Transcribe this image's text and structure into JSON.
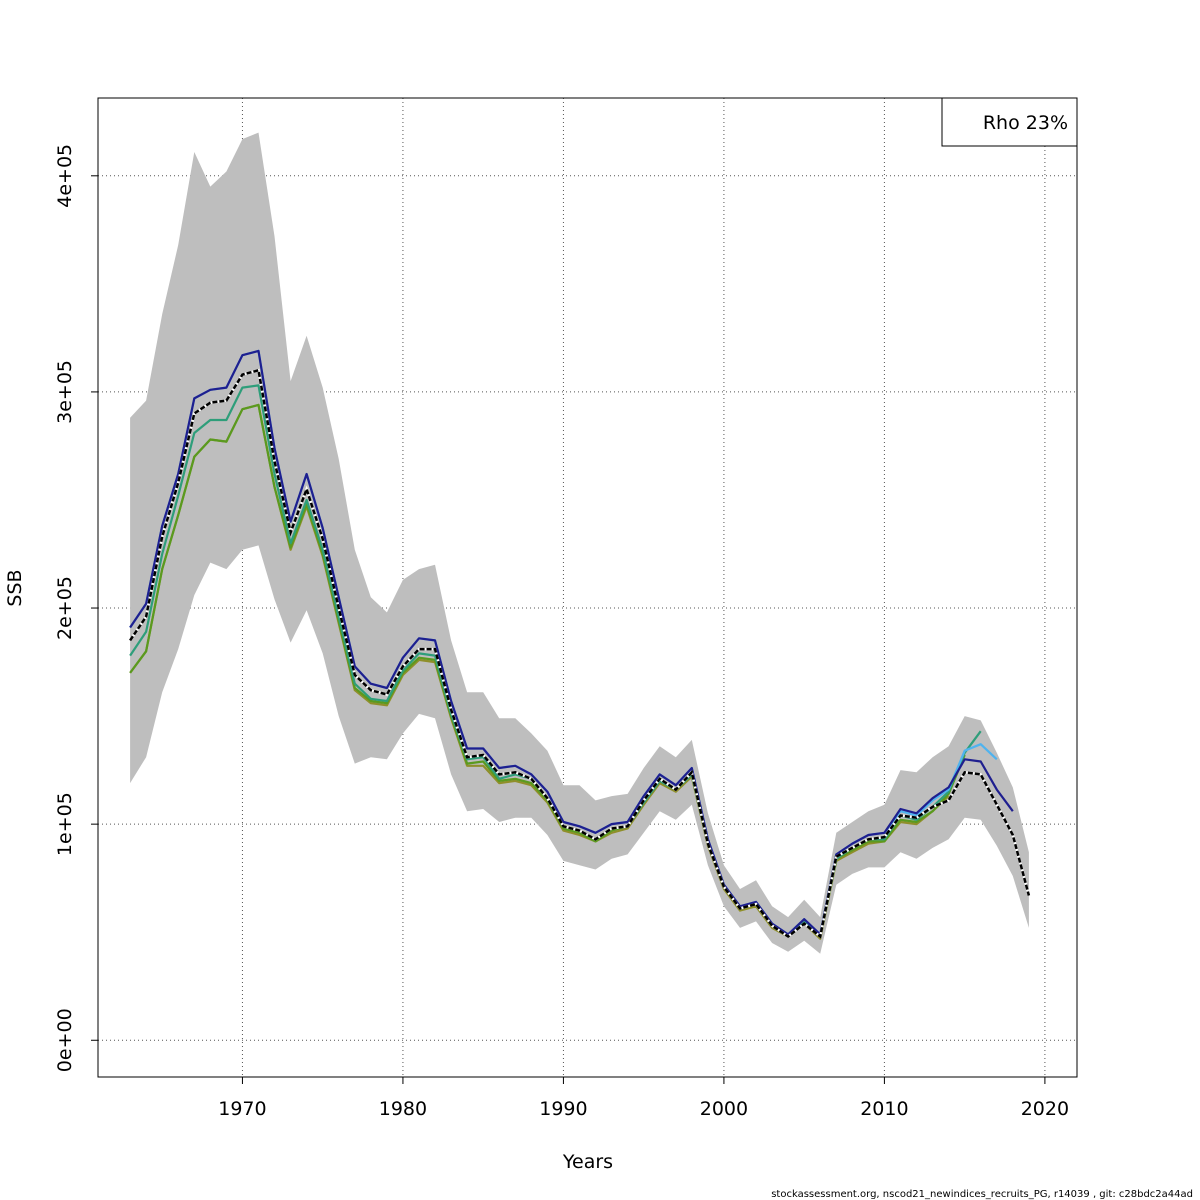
{
  "chart_data": {
    "type": "line",
    "xlabel": "Years",
    "ylabel": "SSB",
    "xlim": [
      1961,
      2022
    ],
    "ylim": [
      -17000,
      436000
    ],
    "x_ticks": [
      1970,
      1980,
      1990,
      2000,
      2010,
      2020
    ],
    "y_ticks": [
      0,
      100000,
      200000,
      300000,
      400000
    ],
    "y_tick_labels": [
      "0e+00",
      "1e+05",
      "2e+05",
      "3e+05",
      "4e+05"
    ],
    "grid": true,
    "legend": {
      "position": "top-right",
      "text": "Rho 23%"
    },
    "colors": {
      "band": "#bebebe",
      "peel1": "#1f1f8f",
      "peel2": "#4fb3ef",
      "peel3": "#2e9e7a",
      "peel4": "#5a9a1f",
      "peel5": "#8f8f2a",
      "terminal": "#000000"
    },
    "band": {
      "years": [
        1963,
        1964,
        1965,
        1966,
        1967,
        1968,
        1969,
        1970,
        1971,
        1972,
        1973,
        1974,
        1975,
        1976,
        1977,
        1978,
        1979,
        1980,
        1981,
        1982,
        1983,
        1984,
        1985,
        1986,
        1987,
        1988,
        1989,
        1990,
        1991,
        1992,
        1993,
        1994,
        1995,
        1996,
        1997,
        1998,
        1999,
        2000,
        2001,
        2002,
        2003,
        2004,
        2005,
        2006,
        2007,
        2008,
        2009,
        2010,
        2011,
        2012,
        2013,
        2014,
        2015,
        2016,
        2017,
        2018,
        2019
      ],
      "upper": [
        288000,
        296000,
        336000,
        368000,
        411000,
        395000,
        402000,
        417000,
        420000,
        372000,
        305000,
        326000,
        302000,
        269000,
        227000,
        205000,
        198000,
        213000,
        218000,
        220000,
        185000,
        161000,
        161000,
        149000,
        149000,
        142000,
        134000,
        118000,
        118000,
        111000,
        113000,
        114000,
        126000,
        136000,
        131000,
        139000,
        105000,
        81000,
        70000,
        74000,
        62000,
        57000,
        65000,
        57000,
        96000,
        101000,
        106000,
        109000,
        125000,
        124000,
        131000,
        136000,
        150000,
        148000,
        133000,
        117000,
        87000
      ],
      "lower": [
        119000,
        131000,
        161000,
        181000,
        206000,
        221000,
        218000,
        227000,
        229000,
        204000,
        184000,
        199000,
        179000,
        150000,
        128000,
        131000,
        130000,
        142000,
        151000,
        149000,
        123000,
        106000,
        107000,
        101000,
        103000,
        103000,
        95000,
        83000,
        81000,
        79000,
        84000,
        86000,
        96000,
        106000,
        102000,
        109000,
        81000,
        62000,
        52000,
        55000,
        45000,
        41000,
        46000,
        40000,
        72000,
        77000,
        80000,
        80000,
        87000,
        84000,
        89000,
        93000,
        103000,
        102000,
        90000,
        76000,
        52000
      ]
    },
    "series": [
      {
        "color_key": "peel1",
        "years": [
          1963,
          1964,
          1965,
          1966,
          1967,
          1968,
          1969,
          1970,
          1971,
          1972,
          1973,
          1974,
          1975,
          1976,
          1977,
          1978,
          1979,
          1980,
          1981,
          1982,
          1983,
          1984,
          1985,
          1986,
          1987,
          1988,
          1989,
          1990,
          1991,
          1992,
          1993,
          1994,
          1995,
          1996,
          1997,
          1998,
          1999,
          2000,
          2001,
          2002,
          2003,
          2004,
          2005,
          2006,
          2007,
          2008,
          2009,
          2010,
          2011,
          2012,
          2013,
          2014,
          2015,
          2016,
          2017,
          2018
        ],
        "values": [
          191000,
          202000,
          238000,
          262000,
          297000,
          301000,
          302000,
          317000,
          319000,
          274000,
          240000,
          262000,
          237000,
          205000,
          173000,
          165000,
          163000,
          177000,
          186000,
          185000,
          157000,
          135000,
          135000,
          126000,
          127000,
          123000,
          115000,
          101000,
          99000,
          96000,
          100000,
          101000,
          113000,
          123000,
          118000,
          126000,
          93000,
          72000,
          62000,
          64000,
          54000,
          49000,
          56000,
          49000,
          86000,
          91000,
          95000,
          96000,
          107000,
          105000,
          112000,
          117000,
          130000,
          129000,
          116000,
          106000
        ]
      },
      {
        "color_key": "peel2",
        "years": [
          1963,
          1964,
          1965,
          1966,
          1967,
          1968,
          1969,
          1970,
          1971,
          1972,
          1973,
          1974,
          1975,
          1976,
          1977,
          1978,
          1979,
          1980,
          1981,
          1982,
          1983,
          1984,
          1985,
          1986,
          1987,
          1988,
          1989,
          1990,
          1991,
          1992,
          1993,
          1994,
          1995,
          1996,
          1997,
          1998,
          1999,
          2000,
          2001,
          2002,
          2003,
          2004,
          2005,
          2006,
          2007,
          2008,
          2009,
          2010,
          2011,
          2012,
          2013,
          2014,
          2015,
          2016,
          2017
        ],
        "values": [
          191000,
          202000,
          238000,
          262000,
          297000,
          301000,
          302000,
          317000,
          319000,
          274000,
          240000,
          262000,
          237000,
          205000,
          173000,
          165000,
          163000,
          177000,
          186000,
          185000,
          157000,
          135000,
          135000,
          126000,
          127000,
          123000,
          115000,
          101000,
          99000,
          96000,
          100000,
          101000,
          113000,
          123000,
          118000,
          126000,
          93000,
          72000,
          62000,
          64000,
          54000,
          49000,
          56000,
          49000,
          86000,
          91000,
          95000,
          96000,
          106000,
          104000,
          111000,
          116000,
          134000,
          137000,
          130000
        ]
      },
      {
        "color_key": "peel3",
        "years": [
          1963,
          1964,
          1965,
          1966,
          1967,
          1968,
          1969,
          1970,
          1971,
          1972,
          1973,
          1974,
          1975,
          1976,
          1977,
          1978,
          1979,
          1980,
          1981,
          1982,
          1983,
          1984,
          1985,
          1986,
          1987,
          1988,
          1989,
          1990,
          1991,
          1992,
          1993,
          1994,
          1995,
          1996,
          1997,
          1998,
          1999,
          2000,
          2001,
          2002,
          2003,
          2004,
          2005,
          2006,
          2007,
          2008,
          2009,
          2010,
          2011,
          2012,
          2013,
          2014,
          2015,
          2016
        ],
        "values": [
          178000,
          189000,
          225000,
          252000,
          281000,
          287000,
          287000,
          302000,
          303000,
          262000,
          230000,
          250000,
          227000,
          196000,
          165000,
          158000,
          157000,
          171000,
          179000,
          178000,
          151000,
          130000,
          131000,
          121000,
          123000,
          121000,
          112000,
          99000,
          97000,
          93000,
          98000,
          99000,
          110000,
          120000,
          116000,
          123000,
          91000,
          71000,
          61000,
          63000,
          53000,
          49000,
          55000,
          48000,
          84000,
          89000,
          93000,
          93000,
          104000,
          102000,
          108000,
          115000,
          133000,
          143000
        ]
      },
      {
        "color_key": "peel4",
        "years": [
          1963,
          1964,
          1965,
          1966,
          1967,
          1968,
          1969,
          1970,
          1971,
          1972,
          1973,
          1974,
          1975,
          1976,
          1977,
          1978,
          1979,
          1980,
          1981,
          1982,
          1983,
          1984,
          1985,
          1986,
          1987,
          1988,
          1989,
          1990,
          1991,
          1992,
          1993,
          1994,
          1995,
          1996,
          1997,
          1998,
          1999,
          2000,
          2001,
          2002,
          2003,
          2004,
          2005,
          2006,
          2007,
          2008,
          2009,
          2010,
          2011,
          2012,
          2013,
          2014,
          2015
        ],
        "values": [
          170000,
          180000,
          218000,
          243000,
          270000,
          278000,
          277000,
          292000,
          294000,
          256000,
          228000,
          248000,
          225000,
          194000,
          163000,
          157000,
          156000,
          170000,
          177000,
          176000,
          150000,
          128000,
          129000,
          120000,
          121000,
          119000,
          111000,
          98000,
          96000,
          92000,
          97000,
          99000,
          110000,
          120000,
          116000,
          123000,
          91000,
          71000,
          61000,
          63000,
          53000,
          48000,
          54000,
          48000,
          84000,
          88000,
          92000,
          92000,
          102000,
          101000,
          106000,
          114000,
          132000
        ]
      },
      {
        "color_key": "peel5",
        "years": [
          1963,
          1964,
          1965,
          1966,
          1967,
          1968,
          1969,
          1970,
          1971,
          1972,
          1973,
          1974,
          1975,
          1976,
          1977,
          1978,
          1979,
          1980,
          1981,
          1982,
          1983,
          1984,
          1985,
          1986,
          1987,
          1988,
          1989,
          1990,
          1991,
          1992,
          1993,
          1994,
          1995,
          1996,
          1997,
          1998,
          1999,
          2000,
          2001,
          2002,
          2003,
          2004,
          2005,
          2006,
          2007,
          2008,
          2009,
          2010,
          2011,
          2012,
          2013,
          2014
        ],
        "values": [
          170000,
          180000,
          218000,
          243000,
          270000,
          278000,
          277000,
          292000,
          294000,
          256000,
          227000,
          247000,
          224000,
          193000,
          162000,
          156000,
          155000,
          169000,
          176000,
          175000,
          149000,
          127000,
          127000,
          119000,
          120000,
          118000,
          110000,
          97000,
          95000,
          92000,
          96000,
          98000,
          109000,
          119000,
          115000,
          122000,
          90000,
          70000,
          60000,
          62000,
          52000,
          48000,
          54000,
          47000,
          83000,
          87000,
          91000,
          92000,
          101000,
          100000,
          106000,
          113000
        ]
      },
      {
        "color_key": "terminal",
        "dashed_overlay": true,
        "years": [
          1963,
          1964,
          1965,
          1966,
          1967,
          1968,
          1969,
          1970,
          1971,
          1972,
          1973,
          1974,
          1975,
          1976,
          1977,
          1978,
          1979,
          1980,
          1981,
          1982,
          1983,
          1984,
          1985,
          1986,
          1987,
          1988,
          1989,
          1990,
          1991,
          1992,
          1993,
          1994,
          1995,
          1996,
          1997,
          1998,
          1999,
          2000,
          2001,
          2002,
          2003,
          2004,
          2005,
          2006,
          2007,
          2008,
          2009,
          2010,
          2011,
          2012,
          2013,
          2014,
          2015,
          2016,
          2017,
          2018,
          2019
        ],
        "values": [
          185000,
          196000,
          233000,
          258000,
          290000,
          295000,
          296000,
          308000,
          310000,
          268000,
          235000,
          255000,
          232000,
          200000,
          169000,
          162000,
          160000,
          173000,
          181000,
          181000,
          153000,
          131000,
          132000,
          123000,
          124000,
          121000,
          112000,
          99000,
          97000,
          93000,
          98000,
          99000,
          111000,
          121000,
          116000,
          124000,
          91000,
          71000,
          61000,
          63000,
          53000,
          48000,
          54000,
          48000,
          85000,
          89000,
          93000,
          94000,
          104000,
          103000,
          108000,
          111000,
          124000,
          123000,
          109000,
          95000,
          67000
        ]
      }
    ]
  },
  "footer": "stockassessment.org, nscod21_newindices_recruits_PG, r14039 , git: c28bdc2a44ad"
}
